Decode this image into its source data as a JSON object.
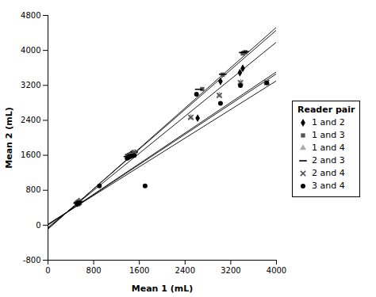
{
  "chart_data": {
    "type": "scatter",
    "xlabel": "Mean 1 (mL)",
    "ylabel": "Mean 2 (mL)",
    "xlim": [
      0,
      4000
    ],
    "ylim": [
      -800,
      4800
    ],
    "xticks": [
      0,
      800,
      1600,
      2400,
      3200,
      4000
    ],
    "yticks": [
      -800,
      0,
      800,
      1600,
      2400,
      3200,
      4000,
      4800
    ],
    "grid": false,
    "legend": "right",
    "legend_title": "Reader pair",
    "series": [
      {
        "name": "1 and 2",
        "marker": "diamond",
        "color": "black",
        "x": [
          510,
          520,
          530,
          545,
          1390,
          1420,
          1445,
          1460,
          1475,
          1500,
          1520,
          2620,
          3020,
          3360,
          3410
        ],
        "values": [
          500,
          510,
          525,
          540,
          1575,
          1595,
          1610,
          1620,
          1635,
          1615,
          1650,
          2450,
          3290,
          3490,
          3590
        ],
        "fit_x": [
          0,
          4000
        ],
        "fit_y": [
          -50,
          4190
        ]
      },
      {
        "name": "1 and 3",
        "marker": "square",
        "color": "#555555",
        "x": [
          510,
          520,
          530,
          545,
          1390,
          1420,
          1455,
          1510,
          2700,
          3060,
          3410,
          3455
        ],
        "values": [
          510,
          520,
          535,
          550,
          1590,
          1608,
          1625,
          1675,
          3115,
          3445,
          3930,
          3960
        ],
        "fit_x": [
          0,
          4000
        ],
        "fit_y": [
          -75,
          4465
        ]
      },
      {
        "name": "1 and 4",
        "marker": "triangle",
        "color": "#aaaaaa",
        "x": [
          510,
          520,
          530,
          545,
          1390,
          1420,
          1455,
          1510,
          2500,
          3000,
          3370,
          3830
        ],
        "values": [
          490,
          498,
          508,
          518,
          1555,
          1572,
          1585,
          1642,
          2470,
          2975,
          3270,
          3275
        ],
        "fit_x": [
          0,
          4000
        ],
        "fit_y": [
          5,
          3465
        ]
      },
      {
        "name": "2 and 3",
        "marker": "hline",
        "color": "black",
        "x": [
          510,
          520,
          530,
          545,
          1390,
          1420,
          1455,
          1510,
          2640,
          3060,
          3410,
          3455
        ],
        "values": [
          505,
          518,
          528,
          542,
          1570,
          1600,
          1625,
          1675,
          3110,
          3455,
          3950,
          3970
        ],
        "fit_x": [
          0,
          4000
        ],
        "fit_y": [
          -90,
          4530
        ]
      },
      {
        "name": "2 and 4",
        "marker": "x",
        "color": "#555555",
        "x": [
          510,
          520,
          530,
          545,
          1390,
          1420,
          1455,
          1510,
          2500,
          3000,
          3370,
          3830
        ],
        "values": [
          493,
          500,
          512,
          525,
          1562,
          1580,
          1593,
          1650,
          2468,
          2968,
          3260,
          3268
        ],
        "fit_x": [
          0,
          4000
        ],
        "fit_y": [
          10,
          3510
        ]
      },
      {
        "name": "3 and 4",
        "marker": "circle",
        "color": "black",
        "x": [
          510,
          520,
          530,
          545,
          900,
          1390,
          1420,
          1455,
          1510,
          1700,
          2600,
          3020,
          3370,
          3830
        ],
        "values": [
          488,
          496,
          505,
          518,
          900,
          1535,
          1565,
          1583,
          1598,
          900,
          2995,
          2790,
          3195,
          3255
        ],
        "fit_x": [
          0,
          4000
        ],
        "fit_y": [
          25,
          3305
        ]
      }
    ]
  }
}
